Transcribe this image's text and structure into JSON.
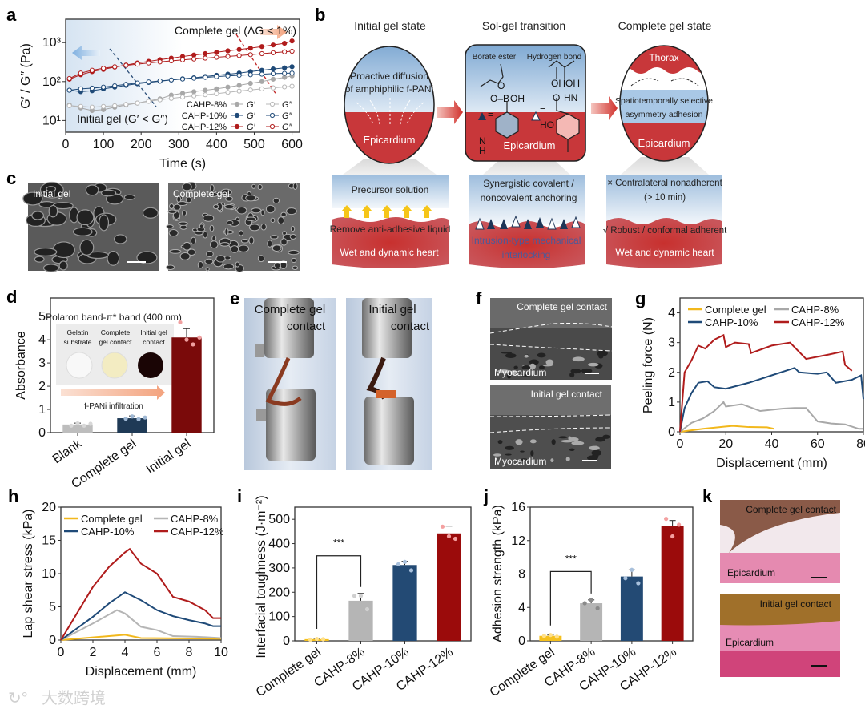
{
  "panel_labels": {
    "a": "a",
    "b": "b",
    "c": "c",
    "d": "d",
    "e": "e",
    "f": "f",
    "g": "g",
    "h": "h",
    "i": "i",
    "j": "j",
    "k": "k"
  },
  "panel_b": {
    "col_titles": [
      "Initial gel state",
      "Sol-gel transition",
      "Complete gel state"
    ],
    "left_oval": {
      "line1": "Proactive diffusion",
      "line2": "of amphiphilic f-PANi",
      "bottom": "Epicardium"
    },
    "middle_box": {
      "borate": "Borate ester",
      "hbond": "Hydrogen bond",
      "bottom": "Epicardium",
      "chem": [
        "O–B",
        "OH",
        "O",
        "OH",
        "OH",
        "O",
        "HN",
        "HO",
        "N",
        "H",
        "=",
        " ="
      ]
    },
    "right_oval": {
      "top": "Thorax",
      "mid1": "Spatiotemporally selective",
      "mid2": "asymmetry adhesion",
      "bottom": "Epicardium"
    },
    "bottom_left": {
      "top": "Precursor solution",
      "mid": "Remove anti-adhesive liquid",
      "bottom": "Wet and dynamic heart"
    },
    "bottom_middle": {
      "top1": "Synergistic covalent /",
      "top2": "noncovalent anchoring",
      "bottom1": "Intrusion-type mechanical",
      "bottom2": "interlocking"
    },
    "bottom_right": {
      "top1": "× Contralateral nonadherent",
      "top2": "(> 10 min)",
      "mid": "√ Robust / conformal  adherent",
      "bottom": "Wet and dynamic heart"
    }
  },
  "panel_c": {
    "left": "Initial gel",
    "right": "Complete gel"
  },
  "panel_d_inset": {
    "title": "Polaron band-π* band (400 nm)",
    "s1a": "Gelatin",
    "s1b": "substrate",
    "s2a": "Complete",
    "s2b": "gel contact",
    "s3a": "Initial gel",
    "s3b": "contact",
    "arrow": "f-PANi infiltration"
  },
  "panel_e": {
    "left1": "Complete gel",
    "left2": "contact",
    "right1": "Initial gel",
    "right2": "contact"
  },
  "panel_f": {
    "top": "Complete gel contact",
    "top_bottom": "Myocardium",
    "bottom": "Initial gel contact",
    "bottom_bottom": "Myocardium"
  },
  "panel_k": {
    "top": "Complete gel contact",
    "top_bottom": "Epicardium",
    "bottom": "Initial gel contact",
    "bottom_bottom": "Epicardium"
  },
  "watermark": "大数跨境",
  "colors": {
    "cahp8": "#a8a8a8",
    "cahp10": "#1f4a78",
    "cahp12": "#b01c1c",
    "complete": "#f2b81c",
    "initial_bar": "#7a0a0a",
    "heart_red": "#c8373a",
    "gel_blue": "#a9c8e6"
  },
  "chart_data": [
    {
      "id": "a",
      "type": "line",
      "xlabel": "Time (s)",
      "ylabel": "G′ / G″ (Pa)",
      "xlim": [
        0,
        620
      ],
      "ylim": [
        5,
        4000
      ],
      "yscale": "log",
      "xticks": [
        0,
        100,
        200,
        300,
        400,
        500,
        600
      ],
      "xtick_labels": [
        "0",
        "100",
        "200",
        "300",
        "400",
        "500",
        "600"
      ],
      "yticks": [
        10,
        100,
        1000
      ],
      "ytick_labels": [
        "10¹",
        "10²",
        "10³"
      ],
      "annotations": [
        "Complete gel (ΔG < 1%)",
        "Initial gel (G′ < G″)"
      ],
      "legend": {
        "groups": [
          "CAHP-8%",
          "CAHP-10%",
          "CAHP-12%"
        ],
        "labels": [
          "G′",
          "G″"
        ],
        "placement": "bottom-right"
      },
      "x": [
        10,
        40,
        70,
        100,
        130,
        160,
        190,
        220,
        250,
        280,
        310,
        340,
        370,
        400,
        430,
        460,
        490,
        520,
        550,
        580,
        600
      ],
      "series": [
        {
          "name": "CAHP-8% G′",
          "color": "#a8a8a8",
          "marker": "filled",
          "y": [
            25,
            21,
            18,
            19,
            22,
            25,
            28,
            32,
            36,
            45,
            50,
            55,
            60,
            65,
            72,
            80,
            90,
            100,
            115,
            128,
            140
          ]
        },
        {
          "name": "CAHP-8% G″",
          "color": "#b8b8b8",
          "marker": "open",
          "y": [
            24,
            23,
            22,
            23,
            24,
            26,
            28,
            31,
            34,
            37,
            40,
            43,
            46,
            49,
            53,
            57,
            61,
            65,
            69,
            73,
            76
          ]
        },
        {
          "name": "CAHP-10% G′",
          "color": "#1f4a78",
          "marker": "filled",
          "y": [
            60,
            55,
            58,
            65,
            72,
            80,
            88,
            95,
            102,
            110,
            118,
            125,
            135,
            145,
            155,
            165,
            180,
            195,
            210,
            225,
            240
          ]
        },
        {
          "name": "CAHP-10% G″",
          "color": "#1f4a78",
          "marker": "open",
          "y": [
            60,
            65,
            68,
            72,
            78,
            85,
            92,
            98,
            104,
            110,
            116,
            122,
            128,
            134,
            140,
            145,
            150,
            155,
            160,
            163,
            165
          ]
        },
        {
          "name": "CAHP-12% G′",
          "color": "#b01c1c",
          "marker": "filled",
          "y": [
            115,
            150,
            180,
            205,
            235,
            265,
            300,
            330,
            365,
            400,
            440,
            480,
            520,
            565,
            615,
            665,
            720,
            790,
            870,
            960,
            1100
          ]
        },
        {
          "name": "CAHP-12% G″",
          "color": "#b01c1c",
          "marker": "open",
          "y": [
            120,
            165,
            195,
            220,
            240,
            260,
            280,
            300,
            320,
            340,
            360,
            380,
            400,
            420,
            440,
            465,
            490,
            520,
            550,
            580,
            600
          ]
        }
      ]
    },
    {
      "id": "d",
      "type": "bar",
      "ylabel": "Absorbance",
      "ylim": [
        0,
        5.8
      ],
      "yticks": [
        0,
        1,
        2,
        3,
        4,
        5
      ],
      "ytick_labels": [
        "0",
        "1",
        "2",
        "3",
        "4",
        "5"
      ],
      "categories": [
        "Blank",
        "Complete gel",
        "Initial gel"
      ],
      "values": [
        0.35,
        0.62,
        4.1
      ],
      "errors": [
        0.06,
        0.1,
        0.38
      ],
      "points": [
        [
          0.3,
          0.4,
          0.3,
          0.38
        ],
        [
          0.6,
          0.7,
          0.58,
          0.65
        ],
        [
          4.75,
          4.0,
          3.8,
          4.1
        ]
      ],
      "bar_colors": [
        "#bdbdbd",
        "#1f3a56",
        "#7a0a0a"
      ],
      "point_colors": [
        "#d8d8d8",
        "#9fb8d4",
        "#f0a0a0"
      ]
    },
    {
      "id": "g",
      "type": "line",
      "xlabel": "Displacement (mm)",
      "ylabel": "Peeling force (N)",
      "xlim": [
        0,
        80
      ],
      "ylim": [
        0,
        4.5
      ],
      "xticks": [
        0,
        20,
        40,
        60,
        80
      ],
      "xtick_labels": [
        "0",
        "20",
        "40",
        "60",
        "80"
      ],
      "yticks": [
        0,
        1,
        2,
        3,
        4
      ],
      "ytick_labels": [
        "0",
        "1",
        "2",
        "3",
        "4"
      ],
      "legend": {
        "placement": "top"
      },
      "series": [
        {
          "name": "Complete gel",
          "color": "#f2b81c",
          "x": [
            0,
            5,
            10,
            20,
            23,
            30,
            38,
            41
          ],
          "y": [
            0,
            0.05,
            0.1,
            0.18,
            0.2,
            0.16,
            0.15,
            0.1
          ]
        },
        {
          "name": "CAHP-8%",
          "color": "#a8a8a8",
          "x": [
            0,
            5,
            10,
            15,
            19,
            20,
            27,
            35,
            45,
            50,
            55,
            60,
            66,
            72,
            78,
            80
          ],
          "y": [
            0,
            0.3,
            0.45,
            0.7,
            1.0,
            0.85,
            0.93,
            0.7,
            0.78,
            0.8,
            0.8,
            0.35,
            0.28,
            0.25,
            0.1,
            0.1
          ]
        },
        {
          "name": "CAHP-10%",
          "color": "#1f4a78",
          "x": [
            0,
            2,
            5,
            8,
            12,
            15,
            20,
            25,
            30,
            40,
            50,
            52,
            60,
            64,
            68,
            75,
            79,
            80
          ],
          "y": [
            0,
            0.8,
            1.3,
            1.65,
            1.7,
            1.5,
            1.45,
            1.55,
            1.65,
            1.9,
            2.15,
            2.0,
            1.95,
            2.0,
            1.65,
            1.75,
            1.9,
            1.1
          ]
        },
        {
          "name": "CAHP-12%",
          "color": "#b01c1c",
          "x": [
            0,
            2,
            5,
            8,
            11,
            15,
            19,
            20,
            24,
            30,
            31,
            40,
            48,
            55,
            65,
            71,
            72,
            75
          ],
          "y": [
            0,
            2.0,
            2.4,
            2.9,
            2.8,
            3.1,
            3.25,
            2.85,
            3.0,
            2.95,
            2.65,
            2.9,
            3.0,
            2.45,
            2.6,
            2.7,
            2.25,
            2.05
          ]
        }
      ]
    },
    {
      "id": "h",
      "type": "line",
      "xlabel": "Displacement (mm)",
      "ylabel": "Lap shear stress (kPa)",
      "xlim": [
        0,
        10
      ],
      "ylim": [
        0,
        20
      ],
      "xticks": [
        0,
        2,
        4,
        6,
        8,
        10
      ],
      "xtick_labels": [
        "0",
        "2",
        "4",
        "6",
        "8",
        "10"
      ],
      "yticks": [
        0,
        5,
        10,
        15,
        20
      ],
      "ytick_labels": [
        "0",
        "5",
        "10",
        "15",
        "20"
      ],
      "legend": {
        "placement": "top"
      },
      "series": [
        {
          "name": "Complete gel",
          "color": "#f2b81c",
          "x": [
            0,
            2,
            4,
            5,
            10
          ],
          "y": [
            0,
            0.4,
            0.8,
            0.3,
            0.2
          ]
        },
        {
          "name": "CAHP-8%",
          "color": "#b5b5b5",
          "x": [
            0,
            2,
            3.5,
            4,
            5,
            6,
            7,
            8.5,
            10
          ],
          "y": [
            0,
            2.5,
            4.5,
            4.0,
            2.0,
            1.5,
            0.6,
            0.5,
            0.3
          ]
        },
        {
          "name": "CAHP-10%",
          "color": "#1f4a78",
          "x": [
            0,
            2,
            3,
            4,
            5,
            6,
            7,
            8,
            9,
            9.5,
            10
          ],
          "y": [
            0,
            3.5,
            5.5,
            7.2,
            6.0,
            4.5,
            3.6,
            3.0,
            2.5,
            2.1,
            2.1
          ]
        },
        {
          "name": "CAHP-12%",
          "color": "#b01c1c",
          "x": [
            0,
            2,
            3,
            4,
            4.3,
            5,
            6,
            7,
            8,
            9,
            9.5,
            10
          ],
          "y": [
            0,
            8,
            11,
            13.2,
            13.7,
            11.5,
            10,
            6.5,
            5.8,
            4.5,
            3.3,
            3.3
          ]
        }
      ]
    },
    {
      "id": "i",
      "type": "bar",
      "ylabel": "Interfacial toughness (J·m⁻²)",
      "ylim": [
        0,
        550
      ],
      "yticks": [
        0,
        100,
        200,
        300,
        400,
        500
      ],
      "ytick_labels": [
        "0",
        "100",
        "200",
        "300",
        "400",
        "500"
      ],
      "categories": [
        "Complete gel",
        "CAHP-8%",
        "CAHP-10%",
        "CAHP-12%"
      ],
      "values": [
        7,
        165,
        312,
        442
      ],
      "errors": [
        3,
        30,
        15,
        30
      ],
      "points": [
        [
          5,
          8,
          7
        ],
        [
          185,
          185,
          130
        ],
        [
          315,
          325,
          290
        ],
        [
          470,
          430,
          420
        ]
      ],
      "bar_colors": [
        "#f5c01c",
        "#b5b5b5",
        "#234a74",
        "#9b0b0b"
      ],
      "point_colors": [
        "#ffe08a",
        "#d0d0d0",
        "#a8c0dc",
        "#f4a0a0"
      ],
      "significance": {
        "from": "Complete gel",
        "to": "CAHP-8%",
        "level": 350,
        "label": "***"
      }
    },
    {
      "id": "j",
      "type": "bar",
      "ylabel": "Adhesion strength (kPa)",
      "ylim": [
        0,
        16
      ],
      "yticks": [
        0,
        4,
        8,
        12,
        16
      ],
      "ytick_labels": [
        "0",
        "4",
        "8",
        "12",
        "16"
      ],
      "categories": [
        "Complete gel",
        "CAHP-8%",
        "CAHP-10%",
        "CAHP-12%"
      ],
      "values": [
        0.6,
        4.5,
        7.7,
        13.7
      ],
      "errors": [
        0.1,
        0.4,
        0.8,
        0.7
      ],
      "points": [
        [
          0.6,
          0.7,
          0.5
        ],
        [
          4.5,
          4.9,
          3.9
        ],
        [
          7.5,
          8.5,
          6.9
        ],
        [
          14.6,
          12.5,
          13.9
        ]
      ],
      "bar_colors": [
        "#f5c01c",
        "#b5b5b5",
        "#234a74",
        "#9b0b0b"
      ],
      "point_colors": [
        "#ffe08a",
        "#8a8a8a",
        "#a8c0dc",
        "#f4a0a0"
      ],
      "significance": {
        "from": "Complete gel",
        "to": "CAHP-8%",
        "level": 8.3,
        "label": "***"
      }
    }
  ]
}
